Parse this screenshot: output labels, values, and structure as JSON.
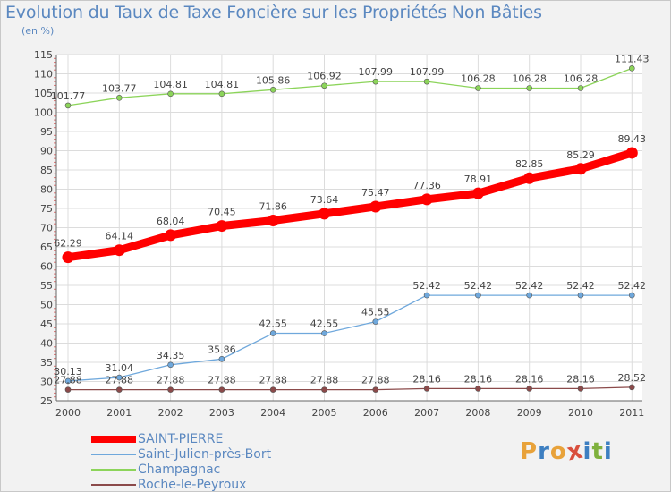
{
  "header": {
    "title": "Evolution du Taux de Taxe Foncière sur les Propriétés Non Bâties",
    "unit": "(en %)"
  },
  "logo": {
    "letters": [
      "P",
      "r",
      "o",
      "x",
      "i",
      "t",
      "i"
    ],
    "colors": [
      "#e8a23a",
      "#3d7fc1",
      "#e8a23a",
      "#d94f3d",
      "#3d7fc1",
      "#7fb13d",
      "#3d7fc1"
    ]
  },
  "chart_data": {
    "type": "line",
    "title": "Evolution du Taux de Taxe Foncière sur les Propriétés Non Bâties",
    "ylabel": "(en %)",
    "xlabel": "",
    "x": [
      "2000",
      "2001",
      "2002",
      "2003",
      "2004",
      "2005",
      "2006",
      "2007",
      "2008",
      "2009",
      "2010",
      "2011"
    ],
    "ylim": [
      25,
      115
    ],
    "yticks": [
      25,
      30,
      35,
      40,
      45,
      50,
      55,
      60,
      65,
      70,
      75,
      80,
      85,
      90,
      95,
      100,
      105,
      110,
      115
    ],
    "grid": true,
    "series": [
      {
        "name": "SAINT-PIERRE",
        "color": "#ff0000",
        "values": [
          62.29,
          64.14,
          68.04,
          70.45,
          71.86,
          73.64,
          75.47,
          77.36,
          78.91,
          82.85,
          85.29,
          89.43
        ],
        "labels": [
          "62.29",
          "64.14",
          "68.04",
          "70.45",
          "71.86",
          "73.64",
          "75.47",
          "77.36",
          "78.91",
          "82.85",
          "85.29",
          "89.43"
        ]
      },
      {
        "name": "Saint-Julien-près-Bort",
        "color": "#6fa8dc",
        "values": [
          30.13,
          31.04,
          34.35,
          35.86,
          42.55,
          42.55,
          45.55,
          52.42,
          52.42,
          52.42,
          52.42,
          52.42
        ],
        "labels": [
          "30.13",
          "31.04",
          "34.35",
          "35.86",
          "42.55",
          "42.55",
          "45.55",
          "52.42",
          "52.42",
          "52.42",
          "52.42",
          "52.42"
        ]
      },
      {
        "name": "Champagnac",
        "color": "#8cd45a",
        "values": [
          101.77,
          103.77,
          104.81,
          104.81,
          105.86,
          106.92,
          107.99,
          107.99,
          106.28,
          106.28,
          106.28,
          111.43
        ],
        "labels": [
          "101.77",
          "103.77",
          "104.81",
          "104.81",
          "105.86",
          "106.92",
          "107.99",
          "107.99",
          "106.28",
          "106.28",
          "106.28",
          "111.43"
        ]
      },
      {
        "name": "Roche-le-Peyroux",
        "color": "#8b4a4a",
        "values": [
          27.88,
          27.88,
          27.88,
          27.88,
          27.88,
          27.88,
          27.88,
          28.16,
          28.16,
          28.16,
          28.16,
          28.52
        ],
        "labels": [
          "27.88",
          "27.88",
          "27.88",
          "27.88",
          "27.88",
          "27.88",
          "27.88",
          "28.16",
          "28.16",
          "28.16",
          "28.16",
          "28.52"
        ]
      }
    ]
  }
}
